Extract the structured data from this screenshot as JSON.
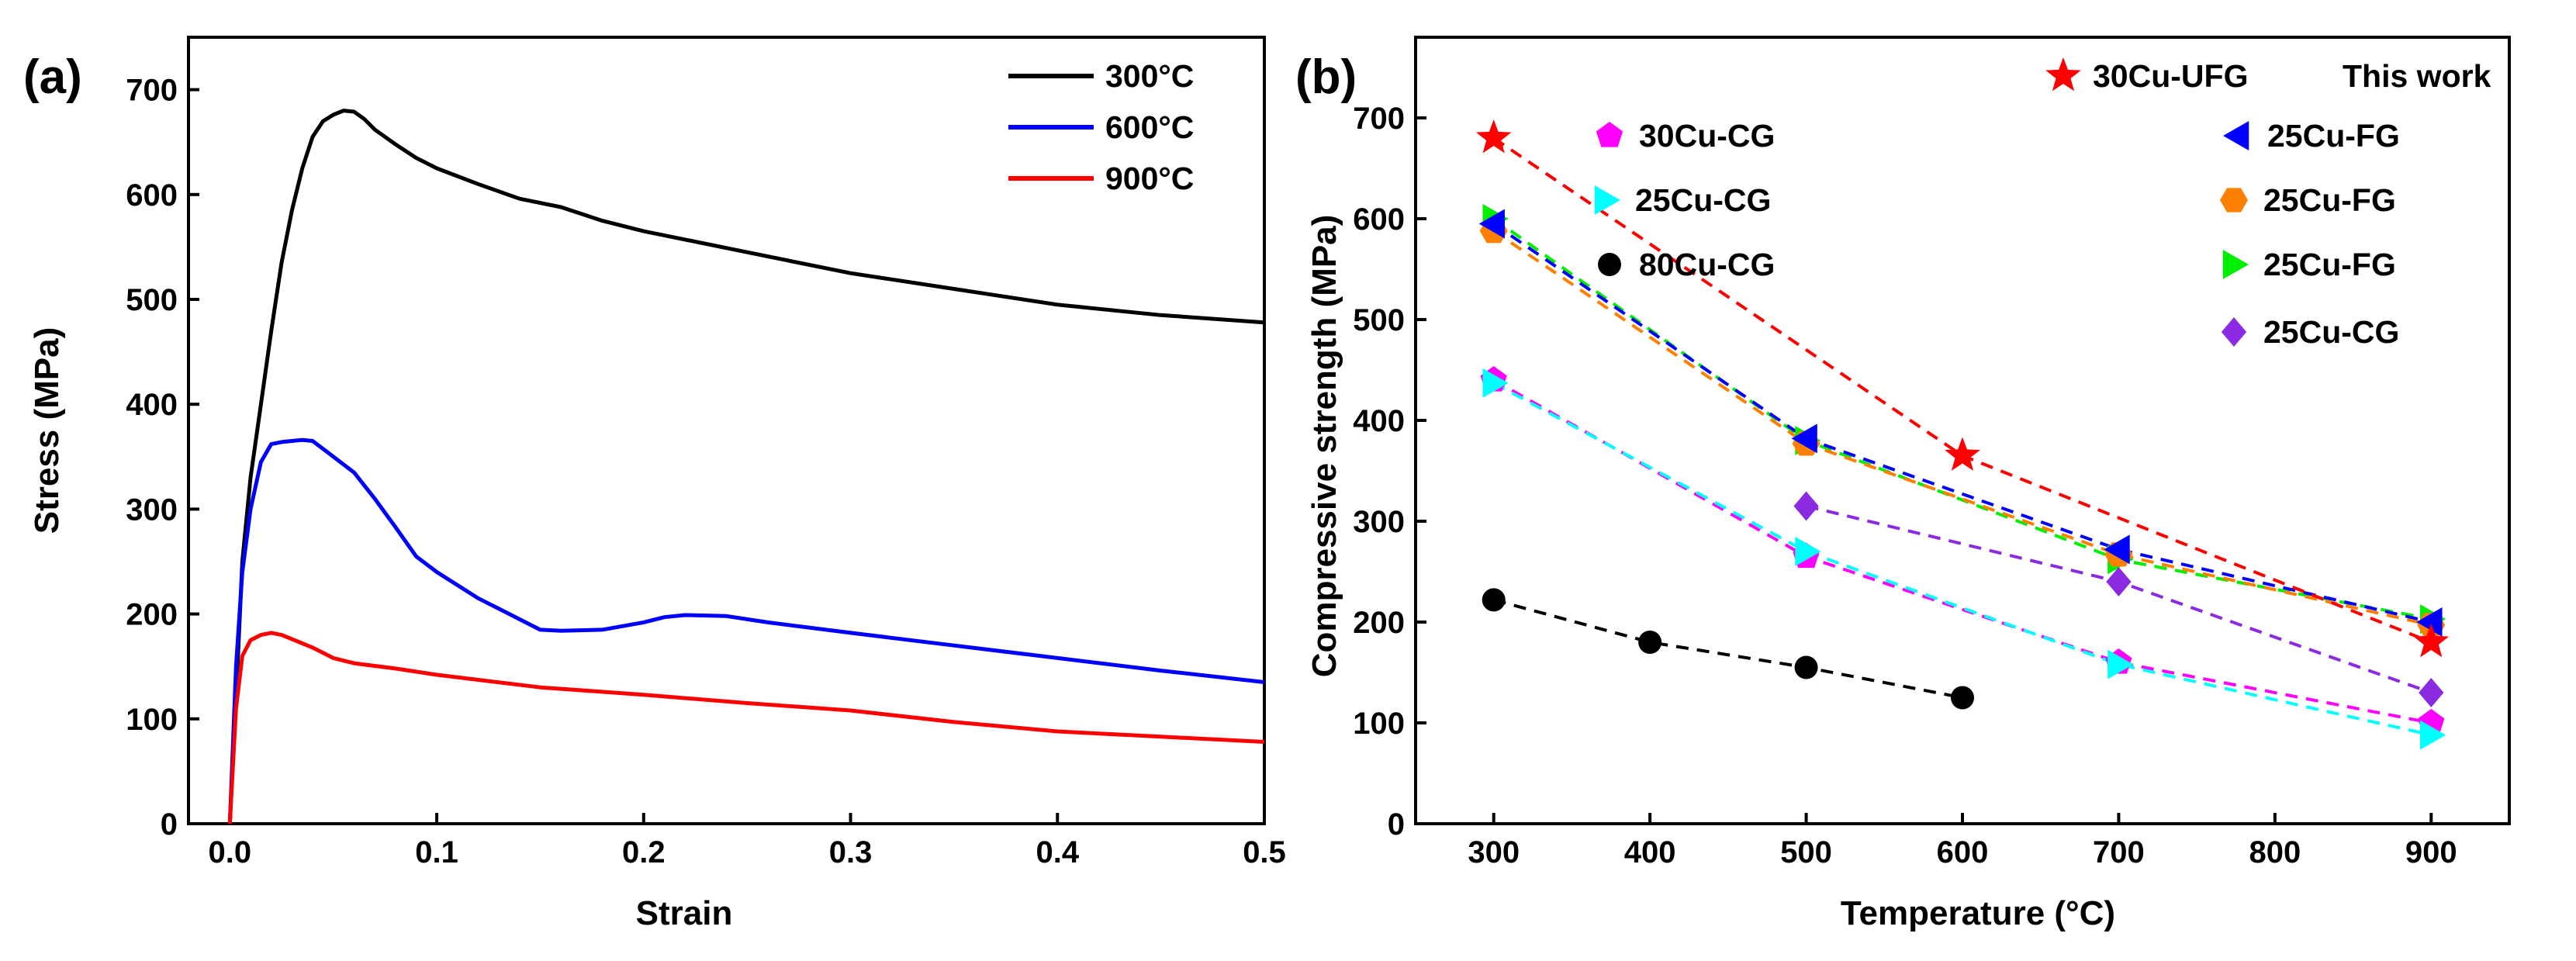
{
  "chart_data": [
    {
      "panel": "(a)",
      "type": "line",
      "title": "",
      "xlabel": "Strain",
      "ylabel": "Stress (MPa)",
      "xlim": [
        -0.02,
        0.5
      ],
      "ylim": [
        0,
        750
      ],
      "xticks": [
        0.0,
        0.1,
        0.2,
        0.3,
        0.4,
        0.5
      ],
      "xtick_labels": [
        "0.0",
        "0.1",
        "0.2",
        "0.3",
        "0.4",
        "0.5"
      ],
      "yticks": [
        0,
        100,
        200,
        300,
        400,
        500,
        600,
        700
      ],
      "ytick_labels": [
        "0",
        "100",
        "200",
        "300",
        "400",
        "500",
        "600",
        "700"
      ],
      "legend_position": "top-right",
      "series": [
        {
          "name": "300°C",
          "color": "#000000",
          "x": [
            0.0,
            0.003,
            0.006,
            0.01,
            0.015,
            0.02,
            0.025,
            0.03,
            0.035,
            0.04,
            0.045,
            0.05,
            0.055,
            0.06,
            0.065,
            0.07,
            0.08,
            0.09,
            0.1,
            0.12,
            0.14,
            0.16,
            0.18,
            0.2,
            0.22,
            0.25,
            0.28,
            0.3,
            0.35,
            0.4,
            0.45,
            0.5
          ],
          "values": [
            0,
            120,
            250,
            330,
            400,
            470,
            535,
            585,
            625,
            655,
            670,
            676,
            680,
            679,
            672,
            662,
            648,
            635,
            625,
            610,
            596,
            588,
            575,
            565,
            557,
            545,
            533,
            525,
            510,
            495,
            485,
            478
          ]
        },
        {
          "name": "600°C",
          "color": "#0000ff",
          "x": [
            0.0,
            0.003,
            0.006,
            0.01,
            0.015,
            0.02,
            0.025,
            0.03,
            0.035,
            0.04,
            0.05,
            0.06,
            0.07,
            0.08,
            0.09,
            0.1,
            0.12,
            0.14,
            0.15,
            0.16,
            0.18,
            0.2,
            0.21,
            0.22,
            0.24,
            0.26,
            0.3,
            0.35,
            0.4,
            0.45,
            0.5
          ],
          "values": [
            0,
            150,
            240,
            300,
            345,
            362,
            364,
            365,
            366,
            365,
            350,
            335,
            310,
            283,
            255,
            240,
            215,
            195,
            185,
            184,
            185,
            192,
            197,
            199,
            198,
            192,
            182,
            170,
            158,
            146,
            135
          ]
        },
        {
          "name": "900°C",
          "color": "#ff0000",
          "x": [
            0.0,
            0.003,
            0.006,
            0.01,
            0.015,
            0.02,
            0.025,
            0.03,
            0.04,
            0.05,
            0.06,
            0.08,
            0.1,
            0.15,
            0.2,
            0.25,
            0.3,
            0.35,
            0.4,
            0.45,
            0.5
          ],
          "values": [
            0,
            110,
            160,
            175,
            180,
            182,
            180,
            176,
            168,
            158,
            153,
            148,
            142,
            130,
            123,
            115,
            108,
            97,
            88,
            83,
            78
          ]
        }
      ]
    },
    {
      "panel": "(b)",
      "type": "scatter",
      "title": "",
      "xlabel": "Temperature (°C)",
      "ylabel": "Compressive strength (MPa)",
      "xlim": [
        250,
        950
      ],
      "ylim": [
        0,
        780
      ],
      "xticks": [
        300,
        400,
        500,
        600,
        700,
        800,
        900
      ],
      "xtick_labels": [
        "300",
        "400",
        "500",
        "600",
        "700",
        "800",
        "900"
      ],
      "yticks": [
        0,
        100,
        200,
        300,
        400,
        500,
        600,
        700
      ],
      "ytick_labels": [
        "0",
        "100",
        "200",
        "300",
        "400",
        "500",
        "600",
        "700"
      ],
      "legend_position": "top-right",
      "annotation": "This work",
      "series": [
        {
          "name": "30Cu-UFG",
          "marker": "star",
          "color": "#ff0000",
          "x": [
            300,
            600,
            900
          ],
          "values": [
            680,
            365,
            180
          ]
        },
        {
          "name": "30Cu-CG",
          "marker": "pentagon",
          "color": "#ff00ff",
          "x": [
            300,
            500,
            700,
            900
          ],
          "values": [
            440,
            265,
            160,
            100
          ]
        },
        {
          "name": "25Cu-FG",
          "marker": "triangle-left",
          "color": "#0000ff",
          "x": [
            300,
            500,
            700,
            900
          ],
          "values": [
            595,
            382,
            272,
            200
          ]
        },
        {
          "name": "25Cu-CG",
          "marker": "triangle-right",
          "color": "#00ffff",
          "x": [
            300,
            500,
            700,
            900
          ],
          "values": [
            437,
            270,
            158,
            88
          ]
        },
        {
          "name": "25Cu-FG",
          "marker": "hexagon",
          "color": "#ff8000",
          "x": [
            300,
            500,
            700,
            900
          ],
          "values": [
            588,
            377,
            267,
            197
          ]
        },
        {
          "name": "80Cu-CG",
          "marker": "circle",
          "color": "#000000",
          "x": [
            300,
            400,
            500,
            600
          ],
          "values": [
            222,
            180,
            155,
            125
          ]
        },
        {
          "name": "25Cu-FG",
          "marker": "triangle-right",
          "color": "#00ee00",
          "x": [
            300,
            500,
            700,
            900
          ],
          "values": [
            600,
            380,
            262,
            203
          ]
        },
        {
          "name": "25Cu-CG",
          "marker": "diamond",
          "color": "#8a2be2",
          "x": [
            500,
            700,
            900
          ],
          "values": [
            315,
            240,
            130
          ]
        }
      ]
    }
  ]
}
